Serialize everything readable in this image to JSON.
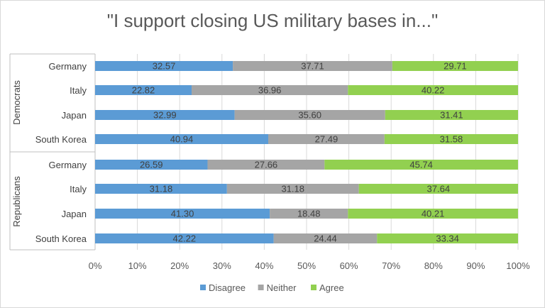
{
  "chart_data": {
    "type": "bar",
    "orientation": "horizontal",
    "stacked": "100%",
    "title": "\"I support closing US military bases in...\"",
    "groups": [
      {
        "name": "Democrats",
        "categories": [
          "Germany",
          "Italy",
          "Japan",
          "South Korea"
        ]
      },
      {
        "name": "Republicans",
        "categories": [
          "Germany",
          "Italy",
          "Japan",
          "South Korea"
        ]
      }
    ],
    "series": [
      {
        "name": "Disagree",
        "color": "#5b9bd5",
        "values": [
          32.57,
          22.82,
          32.99,
          40.94,
          26.59,
          31.18,
          41.3,
          42.22
        ]
      },
      {
        "name": "Neither",
        "color": "#a5a5a5",
        "values": [
          37.71,
          36.96,
          35.6,
          27.49,
          27.66,
          31.18,
          18.48,
          24.44
        ]
      },
      {
        "name": "Agree",
        "color": "#92d050",
        "values": [
          29.71,
          40.22,
          31.41,
          31.58,
          45.74,
          37.64,
          40.21,
          33.34
        ]
      }
    ],
    "value_labels": [
      [
        "32.57",
        "22.82",
        "32.99",
        "40.94",
        "26.59",
        "31.18",
        "41.30",
        "42.22"
      ],
      [
        "37.71",
        "36.96",
        "35.60",
        "27.49",
        "27.66",
        "31.18",
        "18.48",
        "24.44"
      ],
      [
        "29.71",
        "40.22",
        "31.41",
        "31.58",
        "45.74",
        "37.64",
        "40.21",
        "33.34"
      ]
    ],
    "x_ticks": [
      "0%",
      "10%",
      "20%",
      "30%",
      "40%",
      "50%",
      "60%",
      "70%",
      "80%",
      "90%",
      "100%"
    ],
    "xlim": [
      0,
      100
    ],
    "grid": true,
    "legend": "bottom"
  }
}
